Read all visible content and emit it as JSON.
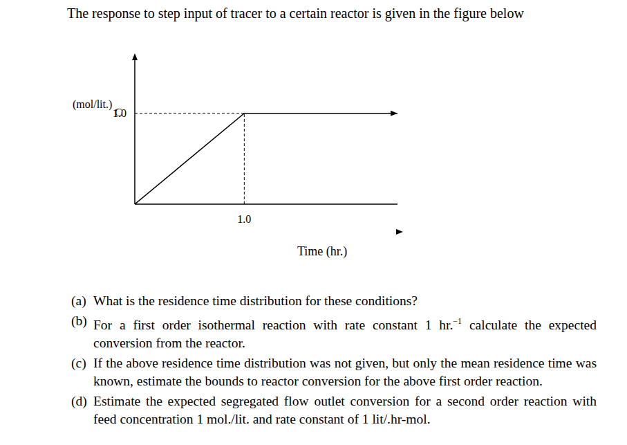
{
  "header": {
    "text": "The response to step input of tracer to a certain reactor is given in the figure below"
  },
  "chart_data": {
    "type": "line",
    "y_label": "C",
    "y_unit": "(mol/lit.)",
    "x_label": "Time (hr.)",
    "x": [
      0,
      1,
      2.4
    ],
    "values": [
      0,
      1,
      1
    ],
    "xlim": [
      0,
      2.4
    ],
    "ylim": [
      0,
      1.6
    ],
    "xticks": [
      {
        "value": 1,
        "label": "1.0"
      }
    ],
    "yticks": [
      {
        "value": 1,
        "label": "1.0"
      }
    ],
    "color": "#000000",
    "grid": false
  },
  "questions": [
    {
      "label": "(a)",
      "text": [
        "What is the residence time distribution for these conditions?"
      ]
    },
    {
      "label": "(b)",
      "text": [
        "For a first order isothermal reaction with rate constant 1 hr.",
        {
          "sup": "−1"
        },
        " calculate the expected conversion from the reactor."
      ]
    },
    {
      "label": "(c)",
      "text": [
        "If the above residence time distribution was not given, but only the mean residence time was known, estimate the bounds to reactor conversion for the above first order reaction."
      ]
    },
    {
      "label": "(d)",
      "text": [
        "Estimate the expected segregated flow outlet conversion for a second order reaction with feed concentration 1 mol./lit. and rate constant of 1 lit/.hr-mol."
      ]
    }
  ]
}
